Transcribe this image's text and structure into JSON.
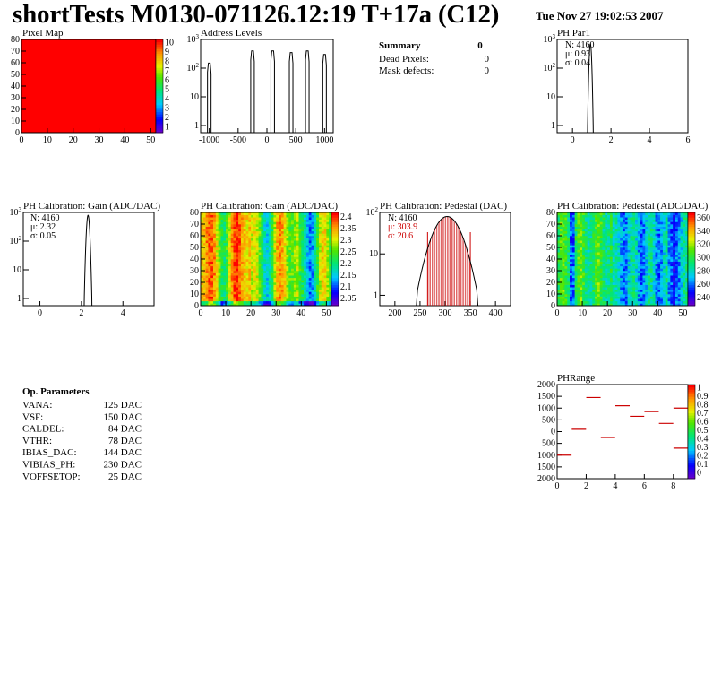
{
  "header": {
    "title": "shortTests M0130-071126.12:19 T+17a (C12)",
    "date": "Tue Nov 27 19:02:53 2007"
  },
  "summary": {
    "label": "Summary",
    "value": "0",
    "rows": [
      {
        "label": "Dead Pixels:",
        "value": "0"
      },
      {
        "label": "Mask defects:",
        "value": "0"
      }
    ]
  },
  "op_parameters": {
    "title": "Op. Parameters",
    "rows": [
      {
        "label": "VANA:",
        "value": "125 DAC"
      },
      {
        "label": "VSF:",
        "value": "150 DAC"
      },
      {
        "label": "CALDEL:",
        "value": "84 DAC"
      },
      {
        "label": "VTHR:",
        "value": "78 DAC"
      },
      {
        "label": "IBIAS_DAC:",
        "value": "144 DAC"
      },
      {
        "label": "VIBIAS_PH:",
        "value": "230 DAC"
      },
      {
        "label": "VOFFSETOP:",
        "value": "25 DAC"
      }
    ]
  },
  "chart_data": [
    {
      "id": "pixel-map",
      "type": "heatmap",
      "title": "Pixel Map",
      "xlim": [
        0,
        52
      ],
      "ylim": [
        0,
        80
      ],
      "xticks": [
        "0",
        "10",
        "20",
        "30",
        "40",
        "50"
      ],
      "yticks": [
        "0",
        "10",
        "20",
        "30",
        "40",
        "50",
        "60",
        "70",
        "80"
      ],
      "zticks": [
        "10",
        "9",
        "8",
        "7",
        "6",
        "5",
        "4",
        "3",
        "2",
        "1"
      ],
      "fill_color": "#ff0000",
      "uniform_value": 10
    },
    {
      "id": "address-levels",
      "type": "bar",
      "title": "Address Levels",
      "log_y": true,
      "xlim": [
        -1150,
        1150
      ],
      "xticks": [
        "-1000",
        "-500",
        "0",
        "500",
        "1000"
      ],
      "yticks": [
        "1",
        "10",
        "10^2",
        "10^3"
      ],
      "peaks": [
        {
          "x": -1000,
          "y": 150
        },
        {
          "x": -250,
          "y": 400
        },
        {
          "x": 100,
          "y": 400
        },
        {
          "x": 420,
          "y": 350
        },
        {
          "x": 700,
          "y": 400
        },
        {
          "x": 1000,
          "y": 300
        }
      ]
    },
    {
      "id": "ph-par1",
      "type": "line",
      "title": "PH Par1",
      "log_y": true,
      "xlim": [
        -0.8,
        6
      ],
      "xticks": [
        "0",
        "2",
        "4",
        "6"
      ],
      "yticks": [
        "1",
        "10",
        "10^2",
        "10^3"
      ],
      "stats": [
        "N: 4160",
        "μ: 0.93",
        "σ: 0.04"
      ],
      "histogram": {
        "mean": 0.93,
        "sigma": 0.04,
        "peak": 700
      }
    },
    {
      "id": "ph-gain-dist",
      "type": "line",
      "title": "PH Calibration: Gain (ADC/DAC)",
      "log_y": true,
      "xlim": [
        -0.8,
        5.5
      ],
      "xticks": [
        "0",
        "2",
        "4"
      ],
      "yticks": [
        "1",
        "10",
        "10^2",
        "10^3"
      ],
      "stats": [
        "N: 4160",
        "μ: 2.32",
        "σ: 0.05"
      ],
      "histogram": {
        "mean": 2.32,
        "sigma": 0.05,
        "peak": 800
      }
    },
    {
      "id": "ph-gain-map",
      "type": "heatmap",
      "title": "PH Calibration: Gain (ADC/DAC)",
      "xlim": [
        0,
        52
      ],
      "ylim": [
        0,
        80
      ],
      "xticks": [
        "0",
        "10",
        "20",
        "30",
        "40",
        "50"
      ],
      "yticks": [
        "0",
        "10",
        "20",
        "30",
        "40",
        "50",
        "60",
        "70",
        "80"
      ],
      "zticks": [
        "2.4",
        "2.35",
        "2.3",
        "2.25",
        "2.2",
        "2.15",
        "2.1",
        "2.05"
      ],
      "zrange": [
        2.0,
        2.45
      ]
    },
    {
      "id": "ph-pedestal-dist",
      "type": "line",
      "title": "PH Calibration: Pedestal (DAC)",
      "log_y": true,
      "xlim": [
        170,
        430
      ],
      "xticks": [
        "200",
        "250",
        "300",
        "350",
        "400"
      ],
      "yticks": [
        "1",
        "10",
        "10^2"
      ],
      "stats": [
        "N: 4160",
        "μ: 303.9",
        "σ: 20.6"
      ],
      "histogram": {
        "mean": 303.9,
        "sigma": 20.6,
        "peak": 80
      },
      "band": [
        265,
        350
      ],
      "band_color": "#cc0000"
    },
    {
      "id": "ph-pedestal-map",
      "type": "heatmap",
      "title": "PH Calibration: Pedestal (ADC/DAC)",
      "xlim": [
        0,
        52
      ],
      "ylim": [
        0,
        80
      ],
      "xticks": [
        "0",
        "10",
        "20",
        "30",
        "40",
        "50"
      ],
      "yticks": [
        "0",
        "10",
        "20",
        "30",
        "40",
        "50",
        "60",
        "70",
        "80"
      ],
      "zticks": [
        "360",
        "340",
        "320",
        "300",
        "280",
        "260",
        "240"
      ],
      "zrange": [
        230,
        370
      ]
    },
    {
      "id": "ph-range",
      "type": "scatter",
      "title": "PHRange",
      "xlim": [
        0,
        9
      ],
      "ylim": [
        -2000,
        2000
      ],
      "xticks": [
        "0",
        "2",
        "4",
        "6",
        "8"
      ],
      "yticks": [
        "2000",
        "1500",
        "1000",
        "500",
        "0",
        "-500",
        "-1000",
        "-1500",
        "-2000"
      ],
      "yticks_display": [
        "2000",
        "1500",
        "1000",
        "500",
        "0",
        "500",
        "1000",
        "1500",
        "2000"
      ],
      "zticks": [
        "1",
        "0.9",
        "0.8",
        "0.7",
        "0.6",
        "0.5",
        "0.4",
        "0.3",
        "0.2",
        "0.1",
        "0"
      ],
      "points": [
        {
          "x": 0.5,
          "y": -1000
        },
        {
          "x": 1.5,
          "y": 100
        },
        {
          "x": 2.5,
          "y": 1450
        },
        {
          "x": 3.5,
          "y": -250
        },
        {
          "x": 4.5,
          "y": 1100
        },
        {
          "x": 5.5,
          "y": 650
        },
        {
          "x": 6.5,
          "y": 850
        },
        {
          "x": 7.5,
          "y": 350
        },
        {
          "x": 8.5,
          "y": 1000
        },
        {
          "x": 8.5,
          "y": -700
        }
      ]
    }
  ]
}
